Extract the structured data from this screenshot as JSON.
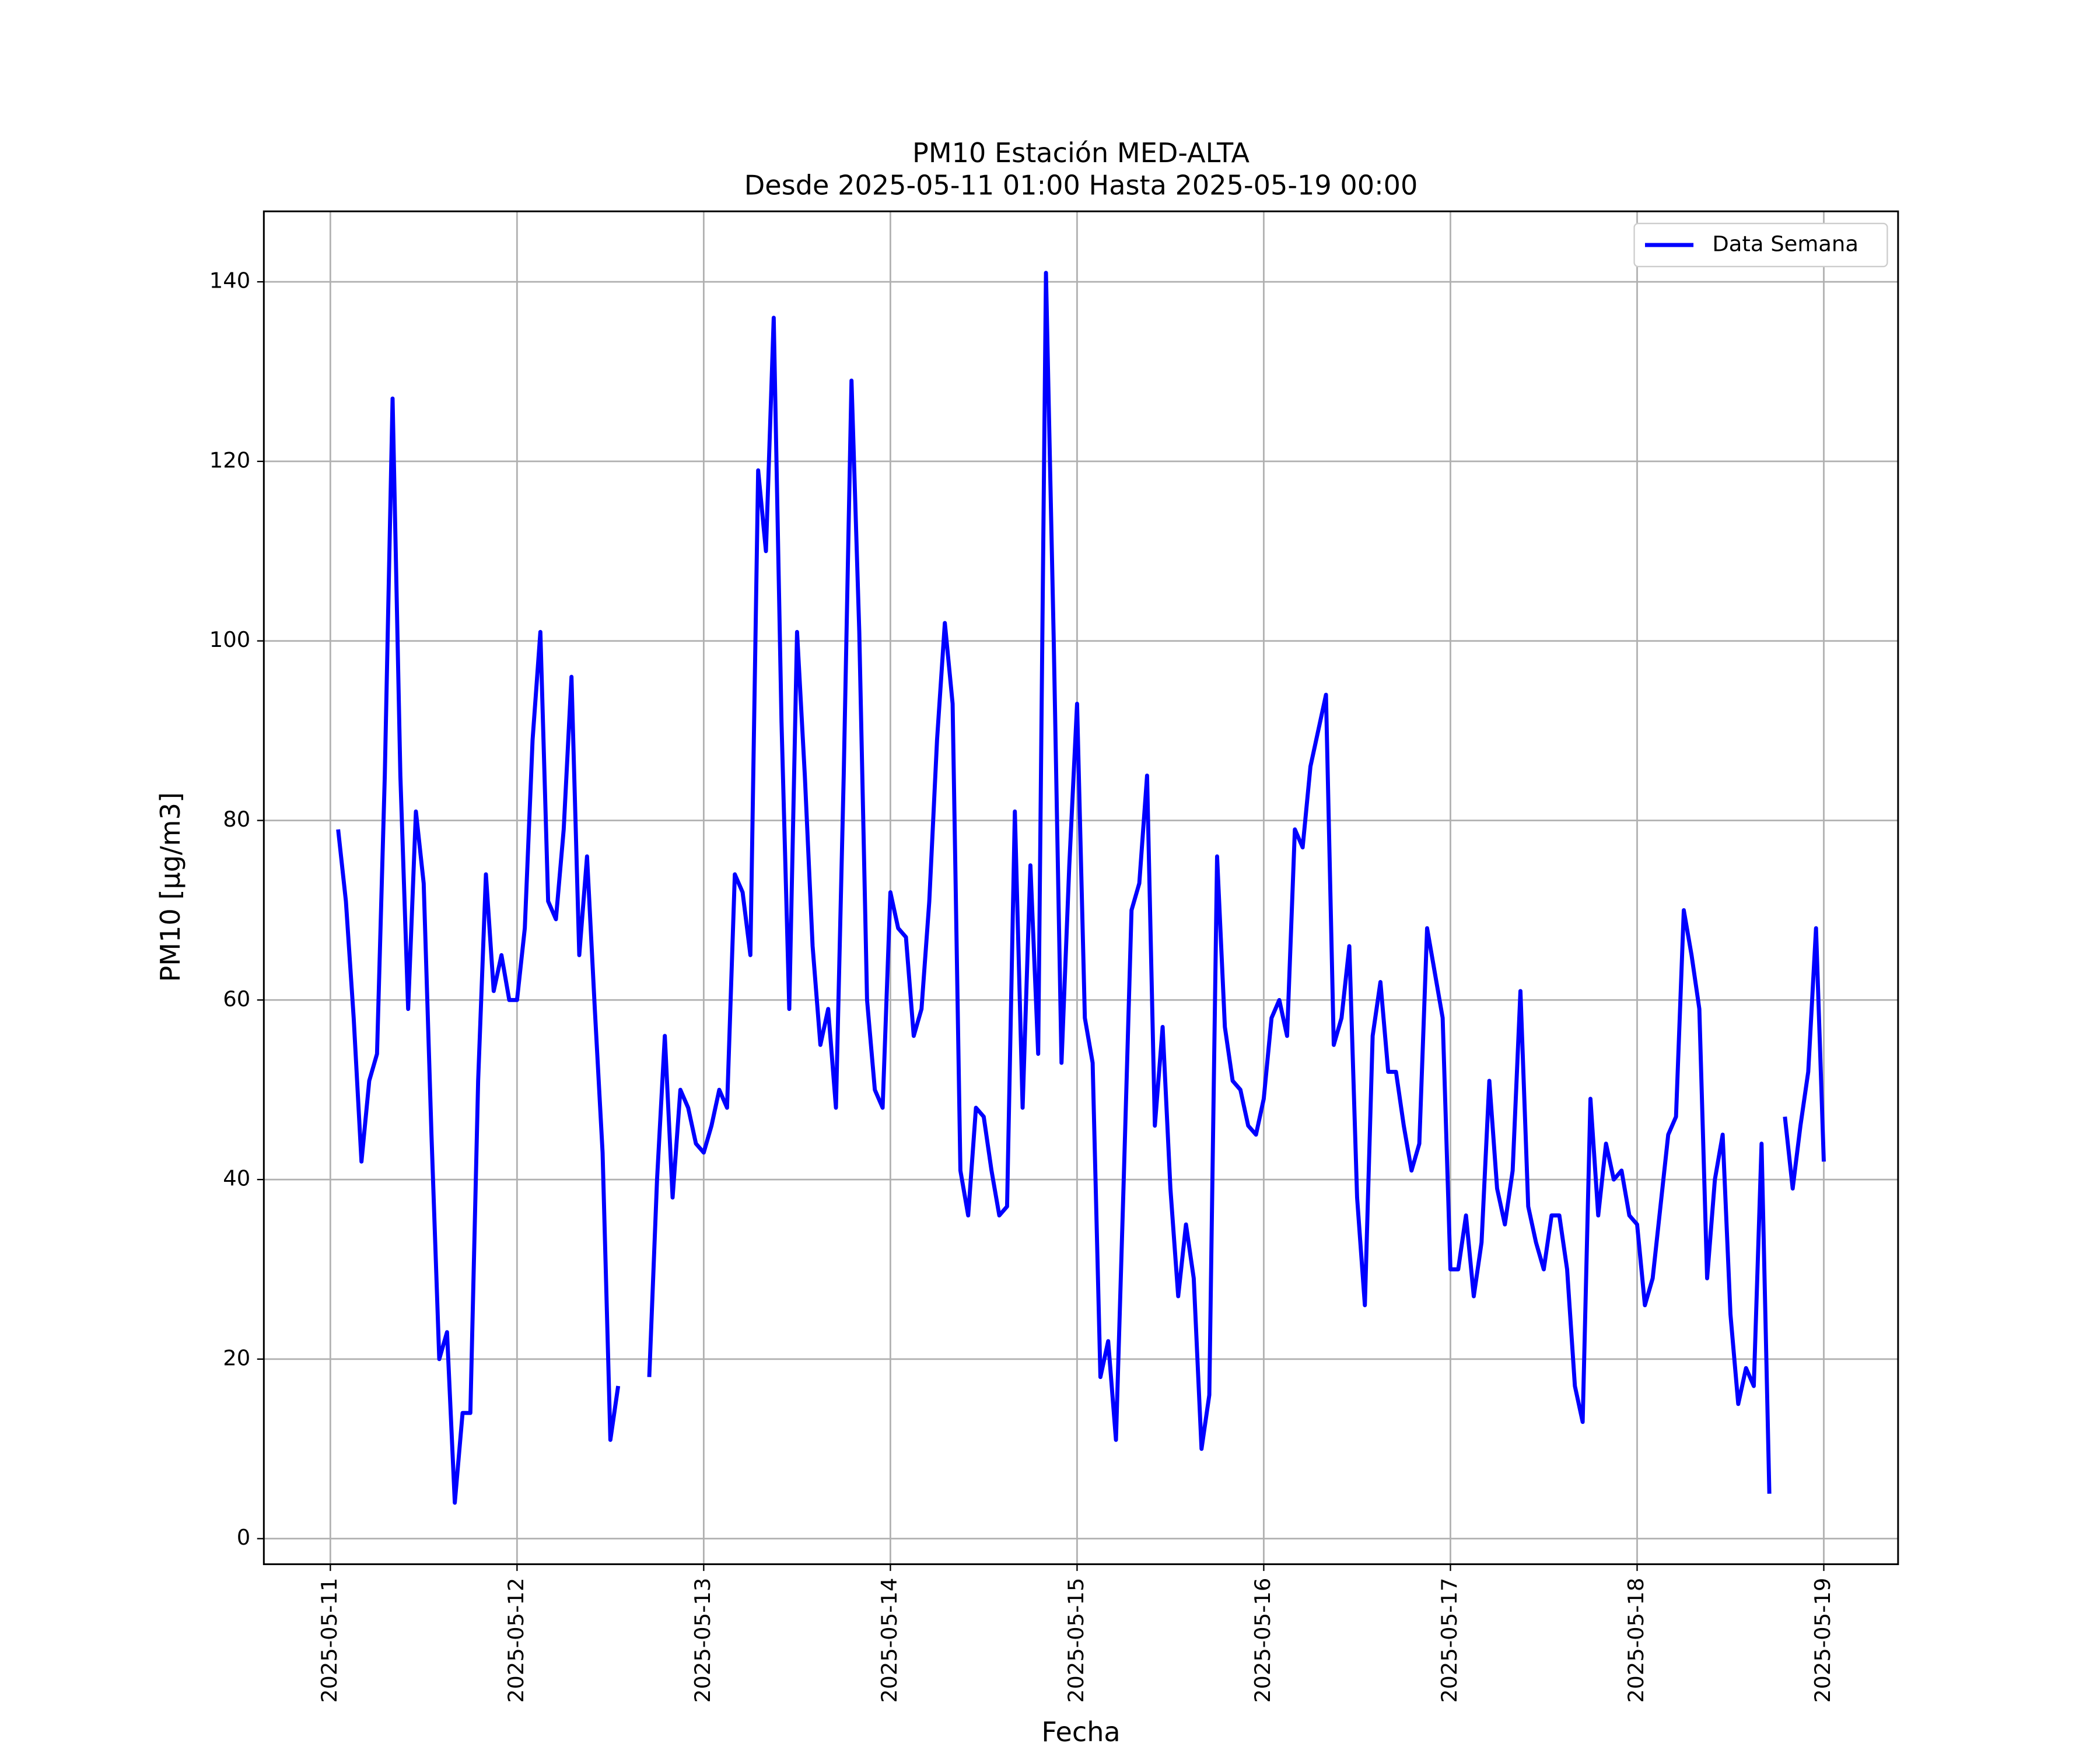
{
  "chart_data": {
    "type": "line",
    "title": "PM10 Estación MED-ALTA",
    "subtitle": "Desde 2025-05-11 01:00 Hasta 2025-05-19 00:00",
    "x_label": "Fecha",
    "y_label": "PM10 [μg/m3]",
    "x": [
      "2025-05-11 01:00",
      "2025-05-11 02:00",
      "2025-05-11 03:00",
      "2025-05-11 04:00",
      "2025-05-11 05:00",
      "2025-05-11 06:00",
      "2025-05-11 07:00",
      "2025-05-11 08:00",
      "2025-05-11 09:00",
      "2025-05-11 10:00",
      "2025-05-11 11:00",
      "2025-05-11 12:00",
      "2025-05-11 13:00",
      "2025-05-11 14:00",
      "2025-05-11 15:00",
      "2025-05-11 16:00",
      "2025-05-11 17:00",
      "2025-05-11 18:00",
      "2025-05-11 19:00",
      "2025-05-11 20:00",
      "2025-05-11 21:00",
      "2025-05-11 22:00",
      "2025-05-11 23:00",
      "2025-05-12 00:00",
      "2025-05-12 01:00",
      "2025-05-12 02:00",
      "2025-05-12 03:00",
      "2025-05-12 04:00",
      "2025-05-12 05:00",
      "2025-05-12 06:00",
      "2025-05-12 07:00",
      "2025-05-12 08:00",
      "2025-05-12 09:00",
      "2025-05-12 10:00",
      "2025-05-12 11:00",
      "2025-05-12 12:00",
      "2025-05-12 13:00",
      "2025-05-12 14:00",
      "2025-05-12 15:00",
      "2025-05-12 16:00",
      "2025-05-12 17:00",
      "2025-05-12 18:00",
      "2025-05-12 19:00",
      "2025-05-12 20:00",
      "2025-05-12 21:00",
      "2025-05-12 22:00",
      "2025-05-12 23:00",
      "2025-05-13 00:00",
      "2025-05-13 01:00",
      "2025-05-13 02:00",
      "2025-05-13 03:00",
      "2025-05-13 04:00",
      "2025-05-13 05:00",
      "2025-05-13 06:00",
      "2025-05-13 07:00",
      "2025-05-13 08:00",
      "2025-05-13 09:00",
      "2025-05-13 10:00",
      "2025-05-13 11:00",
      "2025-05-13 12:00",
      "2025-05-13 13:00",
      "2025-05-13 14:00",
      "2025-05-13 15:00",
      "2025-05-13 16:00",
      "2025-05-13 17:00",
      "2025-05-13 18:00",
      "2025-05-13 19:00",
      "2025-05-13 20:00",
      "2025-05-13 21:00",
      "2025-05-13 22:00",
      "2025-05-13 23:00",
      "2025-05-14 00:00",
      "2025-05-14 01:00",
      "2025-05-14 02:00",
      "2025-05-14 03:00",
      "2025-05-14 04:00",
      "2025-05-14 05:00",
      "2025-05-14 06:00",
      "2025-05-14 07:00",
      "2025-05-14 08:00",
      "2025-05-14 09:00",
      "2025-05-14 10:00",
      "2025-05-14 11:00",
      "2025-05-14 12:00",
      "2025-05-14 13:00",
      "2025-05-14 14:00",
      "2025-05-14 15:00",
      "2025-05-14 16:00",
      "2025-05-14 17:00",
      "2025-05-14 18:00",
      "2025-05-14 19:00",
      "2025-05-14 20:00",
      "2025-05-14 21:00",
      "2025-05-14 22:00",
      "2025-05-14 23:00",
      "2025-05-15 00:00",
      "2025-05-15 01:00",
      "2025-05-15 02:00",
      "2025-05-15 03:00",
      "2025-05-15 04:00",
      "2025-05-15 05:00",
      "2025-05-15 06:00",
      "2025-05-15 07:00",
      "2025-05-15 08:00",
      "2025-05-15 09:00",
      "2025-05-15 10:00",
      "2025-05-15 11:00",
      "2025-05-15 12:00",
      "2025-05-15 13:00",
      "2025-05-15 14:00",
      "2025-05-15 15:00",
      "2025-05-15 16:00",
      "2025-05-15 17:00",
      "2025-05-15 18:00",
      "2025-05-15 19:00",
      "2025-05-15 20:00",
      "2025-05-15 21:00",
      "2025-05-15 22:00",
      "2025-05-15 23:00",
      "2025-05-16 00:00",
      "2025-05-16 01:00",
      "2025-05-16 02:00",
      "2025-05-16 03:00",
      "2025-05-16 04:00",
      "2025-05-16 05:00",
      "2025-05-16 06:00",
      "2025-05-16 07:00",
      "2025-05-16 08:00",
      "2025-05-16 09:00",
      "2025-05-16 10:00",
      "2025-05-16 11:00",
      "2025-05-16 12:00",
      "2025-05-16 13:00",
      "2025-05-16 14:00",
      "2025-05-16 15:00",
      "2025-05-16 16:00",
      "2025-05-16 17:00",
      "2025-05-16 18:00",
      "2025-05-16 19:00",
      "2025-05-16 20:00",
      "2025-05-16 21:00",
      "2025-05-16 22:00",
      "2025-05-16 23:00",
      "2025-05-17 00:00",
      "2025-05-17 01:00",
      "2025-05-17 02:00",
      "2025-05-17 03:00",
      "2025-05-17 04:00",
      "2025-05-17 05:00",
      "2025-05-17 06:00",
      "2025-05-17 07:00",
      "2025-05-17 08:00",
      "2025-05-17 09:00",
      "2025-05-17 10:00",
      "2025-05-17 11:00",
      "2025-05-17 12:00",
      "2025-05-17 13:00",
      "2025-05-17 14:00",
      "2025-05-17 15:00",
      "2025-05-17 16:00",
      "2025-05-17 17:00",
      "2025-05-17 18:00",
      "2025-05-17 19:00",
      "2025-05-17 20:00",
      "2025-05-17 21:00",
      "2025-05-17 22:00",
      "2025-05-17 23:00",
      "2025-05-18 00:00",
      "2025-05-18 01:00",
      "2025-05-18 02:00",
      "2025-05-18 03:00",
      "2025-05-18 04:00",
      "2025-05-18 05:00",
      "2025-05-18 06:00",
      "2025-05-18 07:00",
      "2025-05-18 08:00",
      "2025-05-18 09:00",
      "2025-05-18 10:00",
      "2025-05-18 11:00",
      "2025-05-18 12:00",
      "2025-05-18 13:00",
      "2025-05-18 14:00",
      "2025-05-18 15:00",
      "2025-05-18 16:00",
      "2025-05-18 17:00",
      "2025-05-18 18:00",
      "2025-05-18 19:00",
      "2025-05-18 20:00",
      "2025-05-18 21:00",
      "2025-05-18 22:00",
      "2025-05-18 23:00",
      "2025-05-19 00:00"
    ],
    "series": [
      {
        "name": "Data Semana",
        "color": "#0000ff",
        "values": [
          79,
          71,
          58,
          42,
          51,
          54,
          85,
          127,
          85,
          59,
          81,
          73,
          45,
          20,
          23,
          4,
          14,
          14,
          51,
          74,
          61,
          65,
          60,
          60,
          68,
          89,
          101,
          71,
          69,
          79,
          96,
          65,
          76,
          59,
          43,
          11,
          17,
          null,
          null,
          null,
          18,
          40,
          56,
          38,
          50,
          48,
          44,
          43,
          46,
          50,
          48,
          74,
          72,
          65,
          119,
          110,
          136,
          91,
          59,
          101,
          85,
          66,
          55,
          59,
          48,
          85,
          129,
          101,
          60,
          50,
          48,
          72,
          68,
          67,
          56,
          59,
          71,
          89,
          102,
          93,
          41,
          36,
          48,
          47,
          41,
          36,
          37,
          81,
          48,
          75,
          54,
          141,
          100,
          53,
          75,
          93,
          58,
          53,
          18,
          22,
          11,
          40,
          70,
          73,
          85,
          46,
          57,
          39,
          27,
          35,
          29,
          10,
          16,
          76,
          57,
          51,
          50,
          46,
          45,
          49,
          58,
          60,
          56,
          79,
          77,
          86,
          90,
          94,
          55,
          58,
          66,
          38,
          26,
          56,
          62,
          52,
          52,
          46,
          41,
          44,
          68,
          63,
          58,
          30,
          30,
          36,
          27,
          33,
          51,
          39,
          35,
          41,
          61,
          37,
          33,
          30,
          36,
          36,
          30,
          17,
          13,
          49,
          36,
          44,
          40,
          41,
          36,
          35,
          26,
          29,
          37,
          45,
          47,
          70,
          65,
          59,
          29,
          40,
          45,
          25,
          15,
          19,
          17,
          44,
          5,
          null,
          47,
          39,
          46,
          52,
          68,
          42
        ]
      }
    ],
    "xlim": [
      "2025-05-10 15:27",
      "2025-05-19 09:33"
    ],
    "xticks": [
      "2025-05-11",
      "2025-05-12",
      "2025-05-13",
      "2025-05-14",
      "2025-05-15",
      "2025-05-16",
      "2025-05-17",
      "2025-05-18",
      "2025-05-19"
    ],
    "ylim": [
      -2.85,
      147.85
    ],
    "yticks": [
      0,
      20,
      40,
      60,
      80,
      100,
      120,
      140
    ],
    "grid": true,
    "legend": "upper right"
  }
}
